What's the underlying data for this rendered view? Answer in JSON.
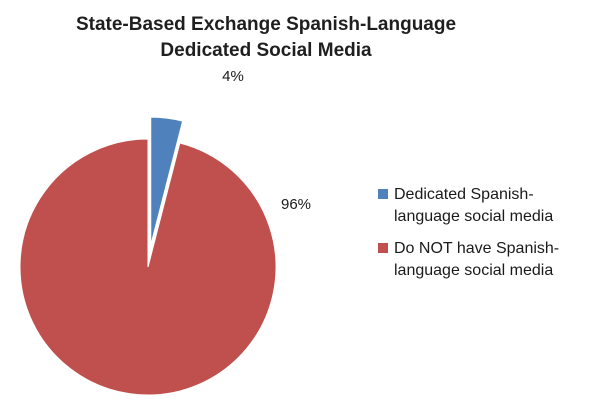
{
  "chart_data": {
    "type": "pie",
    "title": [
      "State-Based Exchange Spanish-Language",
      "Dedicated Social Media"
    ],
    "series": [
      {
        "name": "",
        "categories": [
          "Dedicated Spanish-language social media",
          "Do NOT have Spanish-language social media"
        ],
        "values": [
          4,
          96
        ],
        "labels": [
          "4%",
          "96%"
        ],
        "colors": [
          "#4f81bd",
          "#c0504d"
        ],
        "exploded": [
          true,
          false
        ]
      }
    ],
    "legend": {
      "position": "right",
      "entries": [
        {
          "lines": [
            "Dedicated Spanish-",
            "language social media"
          ],
          "color": "#4f81bd"
        },
        {
          "lines": [
            "Do NOT have Spanish-",
            "language social media"
          ],
          "color": "#c0504d"
        }
      ]
    }
  }
}
